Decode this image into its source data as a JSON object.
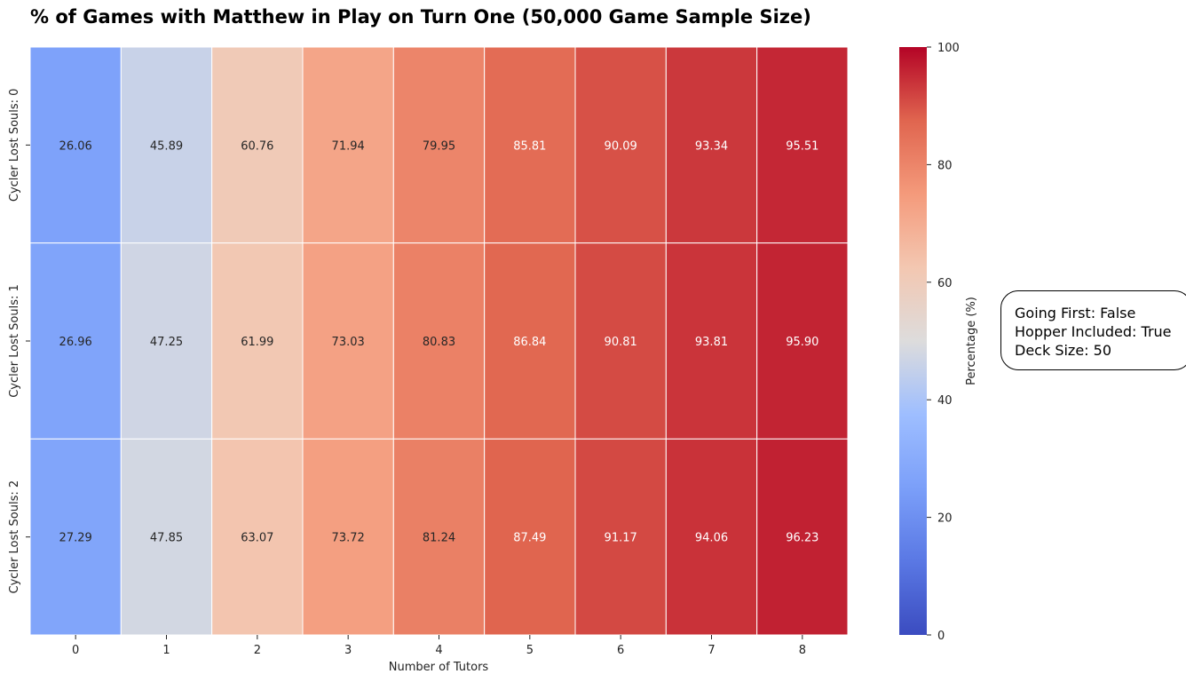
{
  "chart_data": {
    "type": "heatmap",
    "title": "% of Games with Matthew in Play on Turn One (50,000 Game Sample Size)",
    "xlabel": "Number of Tutors",
    "ylabel": "",
    "x_categories": [
      "0",
      "1",
      "2",
      "3",
      "4",
      "5",
      "6",
      "7",
      "8"
    ],
    "y_categories": [
      "Cycler Lost Souls: 0",
      "Cycler Lost Souls: 1",
      "Cycler Lost Souls: 2"
    ],
    "values": [
      [
        26.06,
        45.89,
        60.76,
        71.94,
        79.95,
        85.81,
        90.09,
        93.34,
        95.51
      ],
      [
        26.96,
        47.25,
        61.99,
        73.03,
        80.83,
        86.84,
        90.81,
        93.81,
        95.9
      ],
      [
        27.29,
        47.85,
        63.07,
        73.72,
        81.24,
        87.49,
        91.17,
        94.06,
        96.23
      ]
    ],
    "value_labels": [
      [
        "26.06",
        "45.89",
        "60.76",
        "71.94",
        "79.95",
        "85.81",
        "90.09",
        "93.34",
        "95.51"
      ],
      [
        "26.96",
        "47.25",
        "61.99",
        "73.03",
        "80.83",
        "86.84",
        "90.81",
        "93.81",
        "95.90"
      ],
      [
        "27.29",
        "47.85",
        "63.07",
        "73.72",
        "81.24",
        "87.49",
        "91.17",
        "94.06",
        "96.23"
      ]
    ],
    "colormap": "coolwarm",
    "colorbar": {
      "label": "Percentage (%)",
      "range": [
        0,
        100
      ],
      "ticks": [
        "0",
        "20",
        "40",
        "60",
        "80",
        "100"
      ]
    },
    "grid": false,
    "annotation_box": {
      "lines": [
        "Going First: False",
        "Hopper Included: True",
        "Deck Size: 50"
      ]
    }
  }
}
